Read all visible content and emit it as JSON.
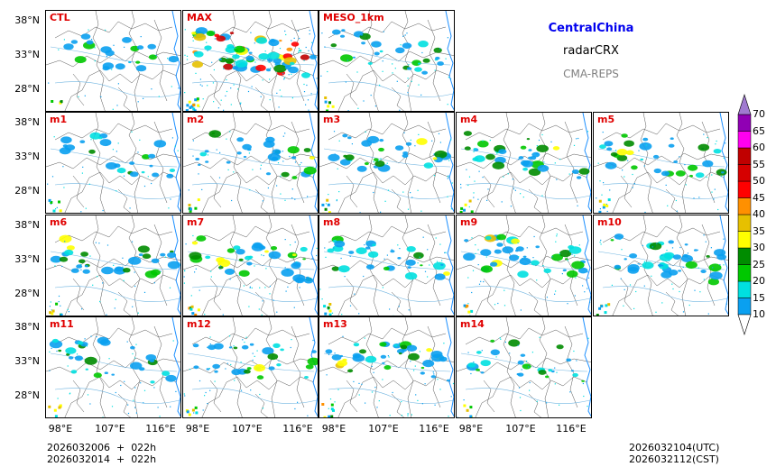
{
  "titles": {
    "region": "CentralChina",
    "product": "radarCRX",
    "model": "CMA-REPS"
  },
  "panels": [
    {
      "label": "CTL",
      "density": 0.5
    },
    {
      "label": "MAX",
      "density": 1.6
    },
    {
      "label": "MESO_1km",
      "density": 0.7
    },
    {
      "label": "m1",
      "density": 0.6
    },
    {
      "label": "m2",
      "density": 0.7
    },
    {
      "label": "m3",
      "density": 0.7
    },
    {
      "label": "m4",
      "density": 0.8
    },
    {
      "label": "m5",
      "density": 0.8
    },
    {
      "label": "m6",
      "density": 0.7
    },
    {
      "label": "m7",
      "density": 0.9
    },
    {
      "label": "m8",
      "density": 0.7
    },
    {
      "label": "m9",
      "density": 0.9
    },
    {
      "label": "m10",
      "density": 0.9
    },
    {
      "label": "m11",
      "density": 0.7
    },
    {
      "label": "m12",
      "density": 0.7
    },
    {
      "label": "m13",
      "density": 0.9
    },
    {
      "label": "m14",
      "density": 0.6
    }
  ],
  "lat_ticks": [
    "38°N",
    "33°N",
    "28°N"
  ],
  "lon_ticks": [
    "98°E",
    "107°E",
    "116°E"
  ],
  "colorbar": {
    "levels": [
      "10",
      "15",
      "20",
      "25",
      "30",
      "35",
      "40",
      "45",
      "50",
      "55",
      "60",
      "65",
      "70"
    ],
    "colors": [
      "#0aa0f0",
      "#00e0e0",
      "#00c800",
      "#008c00",
      "#ffff00",
      "#e6c000",
      "#ff9000",
      "#ff0000",
      "#d60000",
      "#c00000",
      "#ff00f0",
      "#9000b4"
    ],
    "over_color": "#a07ad0",
    "under_color": "#ffffff"
  },
  "footer": {
    "init_utc": "2026032006  +  022h",
    "init_cst": "2026032014  +  022h",
    "valid_utc": "2026032104(UTC)",
    "valid_cst": "2026032112(CST)"
  }
}
